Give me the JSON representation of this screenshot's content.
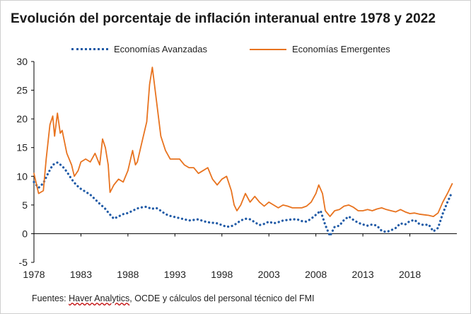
{
  "title": "Evolución del porcentaje de inflación interanual entre 1978 y 2022",
  "source": {
    "prefix": "Fuentes: ",
    "link": "Haver Analytics",
    "suffix": ", OCDE y cálculos del personal técnico del FMI"
  },
  "chart_data": {
    "type": "line",
    "title": "Evolución del porcentaje de inflación interanual entre 1978 y 2022",
    "xlabel": "",
    "ylabel": "",
    "xlim": [
      1978,
      2023
    ],
    "ylim": [
      -5,
      30
    ],
    "grid": false,
    "legend_position": "top",
    "x_ticks": [
      "1978",
      "1983",
      "1988",
      "1993",
      "1998",
      "2003",
      "2008",
      "2013",
      "2018"
    ],
    "y_ticks": [
      "-5",
      "0",
      "5",
      "10",
      "15",
      "20",
      "25",
      "30"
    ],
    "series": [
      {
        "name": "Economías Avanzadas",
        "color": "#1f5aa6",
        "style": "dotted",
        "points": [
          [
            1978.0,
            9.0
          ],
          [
            1978.5,
            8.0
          ],
          [
            1979.0,
            8.8
          ],
          [
            1979.5,
            10.5
          ],
          [
            1980.0,
            12.0
          ],
          [
            1980.5,
            12.4
          ],
          [
            1981.0,
            11.8
          ],
          [
            1981.5,
            10.8
          ],
          [
            1982.0,
            9.5
          ],
          [
            1982.5,
            8.5
          ],
          [
            1983.0,
            7.8
          ],
          [
            1983.5,
            7.3
          ],
          [
            1984.0,
            6.8
          ],
          [
            1984.5,
            6.0
          ],
          [
            1985.0,
            5.2
          ],
          [
            1985.5,
            4.5
          ],
          [
            1986.0,
            3.5
          ],
          [
            1986.5,
            2.6
          ],
          [
            1987.0,
            3.0
          ],
          [
            1987.5,
            3.4
          ],
          [
            1988.0,
            3.6
          ],
          [
            1988.5,
            4.0
          ],
          [
            1989.0,
            4.4
          ],
          [
            1989.5,
            4.6
          ],
          [
            1990.0,
            4.7
          ],
          [
            1990.5,
            4.3
          ],
          [
            1991.0,
            4.5
          ],
          [
            1991.5,
            4.0
          ],
          [
            1992.0,
            3.4
          ],
          [
            1992.5,
            3.1
          ],
          [
            1993.0,
            2.9
          ],
          [
            1993.5,
            2.7
          ],
          [
            1994.0,
            2.5
          ],
          [
            1994.5,
            2.3
          ],
          [
            1995.0,
            2.4
          ],
          [
            1995.5,
            2.5
          ],
          [
            1996.0,
            2.2
          ],
          [
            1996.5,
            2.0
          ],
          [
            1997.0,
            1.9
          ],
          [
            1997.5,
            1.8
          ],
          [
            1998.0,
            1.5
          ],
          [
            1998.5,
            1.2
          ],
          [
            1999.0,
            1.3
          ],
          [
            1999.5,
            1.7
          ],
          [
            2000.0,
            2.3
          ],
          [
            2000.5,
            2.6
          ],
          [
            2001.0,
            2.5
          ],
          [
            2001.5,
            2.0
          ],
          [
            2002.0,
            1.5
          ],
          [
            2002.5,
            1.7
          ],
          [
            2003.0,
            2.1
          ],
          [
            2003.5,
            1.8
          ],
          [
            2004.0,
            2.0
          ],
          [
            2004.5,
            2.3
          ],
          [
            2005.0,
            2.4
          ],
          [
            2005.5,
            2.5
          ],
          [
            2006.0,
            2.5
          ],
          [
            2006.5,
            2.2
          ],
          [
            2007.0,
            2.1
          ],
          [
            2007.5,
            2.6
          ],
          [
            2008.0,
            3.3
          ],
          [
            2008.5,
            4.0
          ],
          [
            2009.0,
            1.5
          ],
          [
            2009.5,
            -0.4
          ],
          [
            2010.0,
            1.2
          ],
          [
            2010.5,
            1.4
          ],
          [
            2011.0,
            2.4
          ],
          [
            2011.5,
            3.0
          ],
          [
            2012.0,
            2.4
          ],
          [
            2012.5,
            1.9
          ],
          [
            2013.0,
            1.6
          ],
          [
            2013.5,
            1.4
          ],
          [
            2014.0,
            1.6
          ],
          [
            2014.5,
            1.4
          ],
          [
            2015.0,
            0.5
          ],
          [
            2015.5,
            0.3
          ],
          [
            2016.0,
            0.6
          ],
          [
            2016.5,
            1.0
          ],
          [
            2017.0,
            1.8
          ],
          [
            2017.5,
            1.6
          ],
          [
            2018.0,
            2.2
          ],
          [
            2018.5,
            2.4
          ],
          [
            2019.0,
            1.7
          ],
          [
            2019.5,
            1.5
          ],
          [
            2020.0,
            1.6
          ],
          [
            2020.5,
            0.4
          ],
          [
            2021.0,
            1.0
          ],
          [
            2021.5,
            3.5
          ],
          [
            2022.0,
            5.5
          ],
          [
            2022.5,
            7.3
          ]
        ]
      },
      {
        "name": "Economías Emergentes",
        "color": "#e8731f",
        "style": "solid",
        "points": [
          [
            1978.0,
            10.5
          ],
          [
            1978.5,
            7.0
          ],
          [
            1979.0,
            7.5
          ],
          [
            1979.3,
            13.0
          ],
          [
            1979.7,
            19.0
          ],
          [
            1980.0,
            20.5
          ],
          [
            1980.2,
            17.0
          ],
          [
            1980.5,
            21.0
          ],
          [
            1980.8,
            17.5
          ],
          [
            1981.0,
            18.0
          ],
          [
            1981.5,
            14.0
          ],
          [
            1982.0,
            12.0
          ],
          [
            1982.3,
            10.0
          ],
          [
            1982.7,
            11.0
          ],
          [
            1983.0,
            12.5
          ],
          [
            1983.5,
            13.0
          ],
          [
            1984.0,
            12.5
          ],
          [
            1984.5,
            14.0
          ],
          [
            1985.0,
            12.0
          ],
          [
            1985.3,
            16.5
          ],
          [
            1985.6,
            15.0
          ],
          [
            1985.9,
            12.0
          ],
          [
            1986.1,
            7.2
          ],
          [
            1986.5,
            8.5
          ],
          [
            1987.0,
            9.5
          ],
          [
            1987.5,
            9.0
          ],
          [
            1988.0,
            11.0
          ],
          [
            1988.5,
            14.5
          ],
          [
            1988.8,
            12.0
          ],
          [
            1989.0,
            12.5
          ],
          [
            1989.5,
            16.0
          ],
          [
            1990.0,
            19.5
          ],
          [
            1990.3,
            26.0
          ],
          [
            1990.6,
            29.0
          ],
          [
            1990.9,
            25.0
          ],
          [
            1991.2,
            21.0
          ],
          [
            1991.5,
            17.0
          ],
          [
            1992.0,
            14.5
          ],
          [
            1992.5,
            13.0
          ],
          [
            1993.0,
            13.0
          ],
          [
            1993.5,
            13.0
          ],
          [
            1994.0,
            12.0
          ],
          [
            1994.5,
            11.5
          ],
          [
            1995.0,
            11.5
          ],
          [
            1995.5,
            10.5
          ],
          [
            1996.0,
            11.0
          ],
          [
            1996.5,
            11.5
          ],
          [
            1997.0,
            9.5
          ],
          [
            1997.5,
            8.5
          ],
          [
            1998.0,
            9.5
          ],
          [
            1998.5,
            10.0
          ],
          [
            1999.0,
            7.5
          ],
          [
            1999.3,
            5.0
          ],
          [
            1999.6,
            4.0
          ],
          [
            2000.0,
            5.0
          ],
          [
            2000.5,
            7.0
          ],
          [
            2001.0,
            5.5
          ],
          [
            2001.5,
            6.5
          ],
          [
            2002.0,
            5.5
          ],
          [
            2002.5,
            4.8
          ],
          [
            2003.0,
            5.5
          ],
          [
            2003.5,
            5.0
          ],
          [
            2004.0,
            4.5
          ],
          [
            2004.5,
            5.0
          ],
          [
            2005.0,
            4.8
          ],
          [
            2005.5,
            4.5
          ],
          [
            2006.0,
            4.5
          ],
          [
            2006.5,
            4.5
          ],
          [
            2007.0,
            4.8
          ],
          [
            2007.5,
            5.5
          ],
          [
            2008.0,
            7.0
          ],
          [
            2008.3,
            8.5
          ],
          [
            2008.7,
            7.0
          ],
          [
            2009.0,
            4.0
          ],
          [
            2009.5,
            3.0
          ],
          [
            2010.0,
            4.0
          ],
          [
            2010.5,
            4.2
          ],
          [
            2011.0,
            4.8
          ],
          [
            2011.5,
            5.0
          ],
          [
            2012.0,
            4.6
          ],
          [
            2012.5,
            4.0
          ],
          [
            2013.0,
            4.0
          ],
          [
            2013.5,
            4.2
          ],
          [
            2014.0,
            4.0
          ],
          [
            2014.5,
            4.3
          ],
          [
            2015.0,
            4.5
          ],
          [
            2015.5,
            4.2
          ],
          [
            2016.0,
            4.0
          ],
          [
            2016.5,
            3.8
          ],
          [
            2017.0,
            4.2
          ],
          [
            2017.5,
            3.8
          ],
          [
            2018.0,
            3.5
          ],
          [
            2018.5,
            3.6
          ],
          [
            2019.0,
            3.4
          ],
          [
            2019.5,
            3.3
          ],
          [
            2020.0,
            3.2
          ],
          [
            2020.5,
            3.0
          ],
          [
            2021.0,
            3.6
          ],
          [
            2021.5,
            5.5
          ],
          [
            2022.0,
            7.0
          ],
          [
            2022.5,
            8.7
          ]
        ]
      }
    ]
  }
}
